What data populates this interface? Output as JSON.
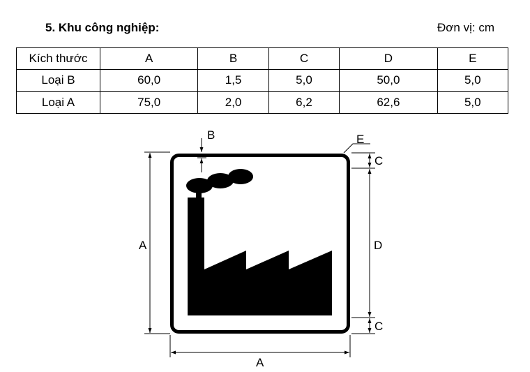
{
  "heading": {
    "title": "5. Khu công nghiệp:",
    "unit": "Đơn vị: cm"
  },
  "table": {
    "header": [
      "Kích thước",
      "A",
      "B",
      "C",
      "D",
      "E"
    ],
    "rows": [
      [
        "Loại B",
        "60,0",
        "1,5",
        "5,0",
        "50,0",
        "5,0"
      ],
      [
        "Loại A",
        "75,0",
        "2,0",
        "6,2",
        "62,6",
        "5,0"
      ]
    ]
  },
  "diagram": {
    "label_a_left": "A",
    "label_a_bottom": "A",
    "label_b": "B",
    "label_c_top": "C",
    "label_c_bottom": "C",
    "label_d": "D",
    "label_e": "E",
    "sign_symbol": "factory-icon"
  }
}
